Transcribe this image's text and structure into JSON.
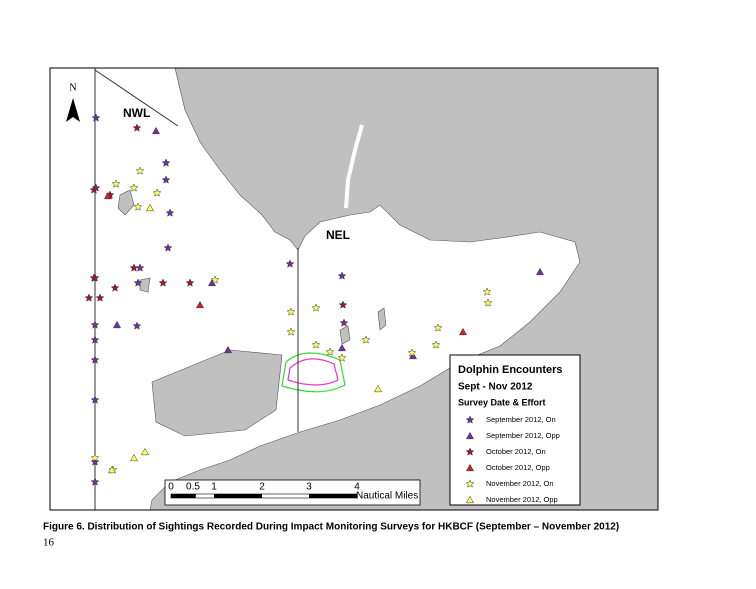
{
  "map": {
    "north": "N",
    "labels": [
      "NWL",
      "NEL"
    ],
    "legend": {
      "title": "Dolphin Encounters",
      "subtitle": "Sept - Nov 2012",
      "heading": "Survey Date & Effort",
      "entries": [
        "September 2012, On",
        "September 2012, Opp",
        "October 2012, On",
        "October 2012, Opp",
        "November 2012, On",
        "November 2012, Opp"
      ]
    },
    "scale": {
      "ticks": [
        "0",
        "0.5",
        "1",
        "2",
        "3",
        "4"
      ],
      "unit": "Nautical Miles"
    }
  },
  "caption": "Figure 6. Distribution of Sightings Recorded During Impact Monitoring Surveys for HKBCF (September – November 2012)",
  "page_number": "16"
}
